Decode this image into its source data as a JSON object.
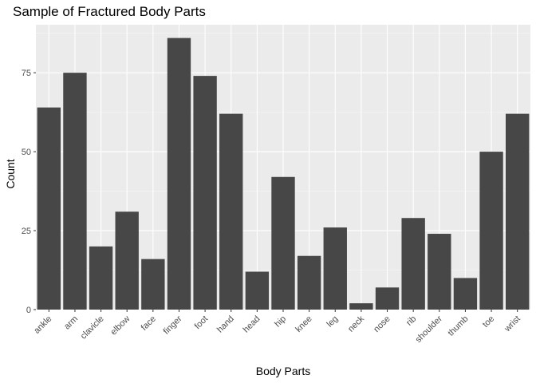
{
  "chart_data": {
    "type": "bar",
    "title": "Sample of Fractured Body Parts",
    "xlabel": "Body Parts",
    "ylabel": "Count",
    "categories": [
      "ankle",
      "arm",
      "clavicle",
      "elbow",
      "face",
      "finger",
      "foot",
      "hand",
      "head",
      "hip",
      "knee",
      "leg",
      "neck",
      "nose",
      "rib",
      "shoulder",
      "thumb",
      "toe",
      "wrist"
    ],
    "values": [
      64,
      75,
      20,
      31,
      16,
      86,
      74,
      62,
      12,
      42,
      17,
      26,
      2,
      7,
      29,
      24,
      10,
      50,
      62
    ],
    "ylim": [
      0,
      90.2
    ],
    "yticks": [
      0,
      25,
      50,
      75
    ],
    "grid": true,
    "colors": {
      "bar": "#474747",
      "panel_background": "#ebebeb",
      "grid": "#ffffff",
      "tick": "#333333"
    }
  }
}
